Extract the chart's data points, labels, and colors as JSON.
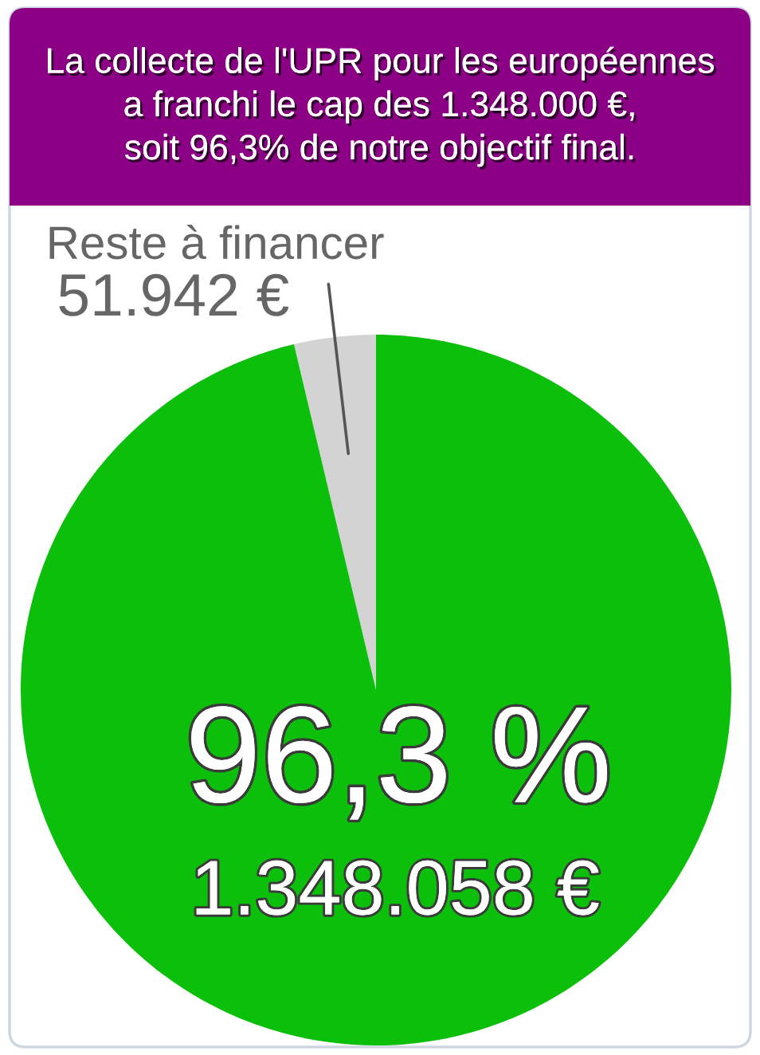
{
  "chart_data": {
    "type": "pie",
    "title": "La collecte de l'UPR pour les européennes\na franchi le cap des 1.348.000 €,\nsoit 96,3% de notre objectif final.",
    "categories": [
      "Reste à financer",
      null
    ],
    "values": [
      51942,
      1348058
    ],
    "colors": [
      "#d3d3d3",
      "#0bbf0b"
    ],
    "value_labels": [
      "51.942 €",
      "1.348.058 €"
    ],
    "annotations": [
      "96,3 %"
    ]
  }
}
